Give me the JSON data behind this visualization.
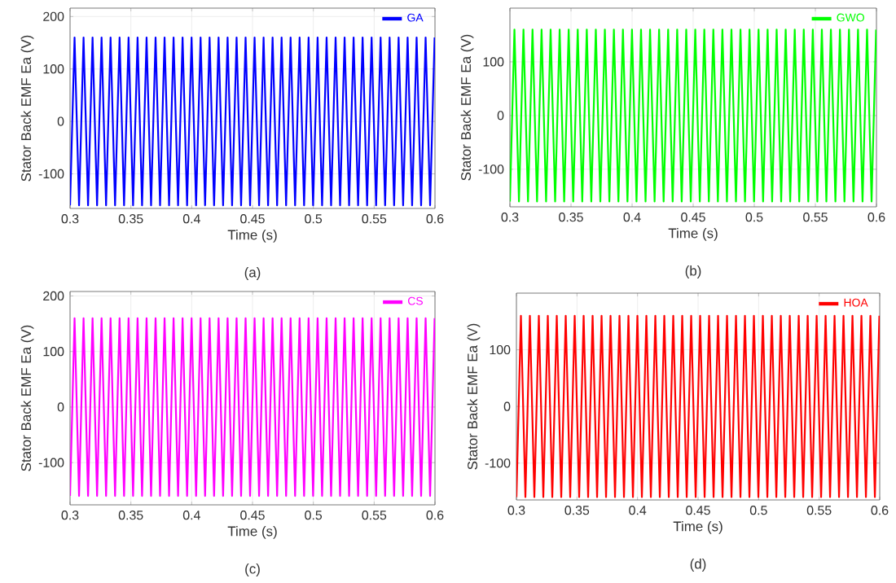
{
  "chart_data": [
    {
      "type": "line",
      "xlabel": "Time (s)",
      "ylabel": "Stator Back EMF Ea (V)",
      "annotations": [
        "(a)"
      ],
      "xlim": [
        0.3,
        0.6
      ],
      "xticks": [
        0.3,
        0.35,
        0.4,
        0.45,
        0.5,
        0.55,
        0.6
      ],
      "ylim": [
        -166,
        216
      ],
      "yticks": [
        -100,
        0,
        100,
        200
      ],
      "grid": true,
      "legend": "top right",
      "x": [
        0.3,
        0.3037,
        0.3074,
        0.3111,
        0.3148,
        0.3185,
        0.3222,
        0.3259,
        0.3296,
        0.3333,
        0.337,
        0.3407,
        0.3444,
        0.3481,
        0.3518,
        0.3555,
        0.3592,
        0.3629,
        0.3666,
        0.3703,
        0.374,
        0.3777,
        0.3814,
        0.3851,
        0.3888,
        0.3925,
        0.3962,
        0.3999,
        0.4036,
        0.4073,
        0.411,
        0.4147,
        0.4184,
        0.4221,
        0.4258,
        0.4295,
        0.4332,
        0.4369,
        0.4406,
        0.4443,
        0.448,
        0.4517,
        0.4554,
        0.4591,
        0.4628,
        0.4665,
        0.4702,
        0.4739,
        0.4776,
        0.4813,
        0.485,
        0.4887,
        0.4924,
        0.4961,
        0.4998,
        0.5035,
        0.5072,
        0.5109,
        0.5146,
        0.5183,
        0.522,
        0.5257,
        0.5294,
        0.5331,
        0.5368,
        0.5405,
        0.5442,
        0.5479,
        0.5516,
        0.5553,
        0.559,
        0.5627,
        0.5664,
        0.5701,
        0.5738,
        0.5775,
        0.5812,
        0.5849,
        0.5886,
        0.5923,
        0.596,
        0.5997
      ],
      "series": [
        {
          "name": "GA",
          "color": "#0000ff",
          "values": [
            -160,
            160,
            -160,
            160,
            -160,
            160,
            -160,
            160,
            -160,
            160,
            -160,
            160,
            -160,
            160,
            -160,
            160,
            -160,
            160,
            -160,
            160,
            -160,
            160,
            -160,
            160,
            -160,
            160,
            -160,
            160,
            -160,
            160,
            -160,
            160,
            -160,
            160,
            -160,
            160,
            -160,
            160,
            -160,
            160,
            -160,
            160,
            -160,
            160,
            -160,
            160,
            -160,
            160,
            -160,
            160,
            -160,
            160,
            -160,
            160,
            -160,
            160,
            -160,
            160,
            -160,
            160,
            -160,
            160,
            -160,
            160,
            -160,
            160,
            -160,
            160,
            -160,
            160,
            -160,
            160,
            -160,
            160,
            -160,
            160,
            -160,
            160,
            -160,
            160,
            -160,
            160
          ]
        }
      ]
    },
    {
      "type": "line",
      "xlabel": "Time (s)",
      "ylabel": "Stator Back EMF Ea (V)",
      "annotations": [
        "(b)"
      ],
      "xlim": [
        0.3,
        0.6
      ],
      "xticks": [
        0.3,
        0.35,
        0.4,
        0.45,
        0.5,
        0.55,
        0.6
      ],
      "ylim": [
        -170,
        200
      ],
      "yticks": [
        -100,
        0,
        100
      ],
      "grid": true,
      "legend": "top right",
      "x": [
        0.3,
        0.3037,
        0.3074,
        0.3111,
        0.3148,
        0.3185,
        0.3222,
        0.3259,
        0.3296,
        0.3333,
        0.337,
        0.3407,
        0.3444,
        0.3481,
        0.3518,
        0.3555,
        0.3592,
        0.3629,
        0.3666,
        0.3703,
        0.374,
        0.3777,
        0.3814,
        0.3851,
        0.3888,
        0.3925,
        0.3962,
        0.3999,
        0.4036,
        0.4073,
        0.411,
        0.4147,
        0.4184,
        0.4221,
        0.4258,
        0.4295,
        0.4332,
        0.4369,
        0.4406,
        0.4443,
        0.448,
        0.4517,
        0.4554,
        0.4591,
        0.4628,
        0.4665,
        0.4702,
        0.4739,
        0.4776,
        0.4813,
        0.485,
        0.4887,
        0.4924,
        0.4961,
        0.4998,
        0.5035,
        0.5072,
        0.5109,
        0.5146,
        0.5183,
        0.522,
        0.5257,
        0.5294,
        0.5331,
        0.5368,
        0.5405,
        0.5442,
        0.5479,
        0.5516,
        0.5553,
        0.559,
        0.5627,
        0.5664,
        0.5701,
        0.5738,
        0.5775,
        0.5812,
        0.5849,
        0.5886,
        0.5923,
        0.596,
        0.5997
      ],
      "series": [
        {
          "name": "GWO",
          "color": "#00ff00",
          "values": [
            -160,
            160,
            -160,
            160,
            -160,
            160,
            -160,
            160,
            -160,
            160,
            -160,
            160,
            -160,
            160,
            -160,
            160,
            -160,
            160,
            -160,
            160,
            -160,
            160,
            -160,
            160,
            -160,
            160,
            -160,
            160,
            -160,
            160,
            -160,
            160,
            -160,
            160,
            -160,
            160,
            -160,
            160,
            -160,
            160,
            -160,
            160,
            -160,
            160,
            -160,
            160,
            -160,
            160,
            -160,
            160,
            -160,
            160,
            -160,
            160,
            -160,
            160,
            -160,
            160,
            -160,
            160,
            -160,
            160,
            -160,
            160,
            -160,
            160,
            -160,
            160,
            -160,
            160,
            -160,
            160,
            -160,
            160,
            -160,
            160,
            -160,
            160,
            -160,
            160,
            -160,
            160
          ]
        }
      ]
    },
    {
      "type": "line",
      "xlabel": "Time (s)",
      "ylabel": "Stator Back EMF Ea (V)",
      "annotations": [
        "(c)"
      ],
      "xlim": [
        0.3,
        0.6
      ],
      "xticks": [
        0.3,
        0.35,
        0.4,
        0.45,
        0.5,
        0.55,
        0.6
      ],
      "ylim": [
        -176,
        208
      ],
      "yticks": [
        -100,
        0,
        100,
        200
      ],
      "grid": true,
      "legend": "top right",
      "x": [
        0.3,
        0.3037,
        0.3074,
        0.3111,
        0.3148,
        0.3185,
        0.3222,
        0.3259,
        0.3296,
        0.3333,
        0.337,
        0.3407,
        0.3444,
        0.3481,
        0.3518,
        0.3555,
        0.3592,
        0.3629,
        0.3666,
        0.3703,
        0.374,
        0.3777,
        0.3814,
        0.3851,
        0.3888,
        0.3925,
        0.3962,
        0.3999,
        0.4036,
        0.4073,
        0.411,
        0.4147,
        0.4184,
        0.4221,
        0.4258,
        0.4295,
        0.4332,
        0.4369,
        0.4406,
        0.4443,
        0.448,
        0.4517,
        0.4554,
        0.4591,
        0.4628,
        0.4665,
        0.4702,
        0.4739,
        0.4776,
        0.4813,
        0.485,
        0.4887,
        0.4924,
        0.4961,
        0.4998,
        0.5035,
        0.5072,
        0.5109,
        0.5146,
        0.5183,
        0.522,
        0.5257,
        0.5294,
        0.5331,
        0.5368,
        0.5405,
        0.5442,
        0.5479,
        0.5516,
        0.5553,
        0.559,
        0.5627,
        0.5664,
        0.5701,
        0.5738,
        0.5775,
        0.5812,
        0.5849,
        0.5886,
        0.5923,
        0.596,
        0.5997
      ],
      "series": [
        {
          "name": "CS",
          "color": "#ff00ff",
          "values": [
            -160,
            160,
            -160,
            160,
            -160,
            160,
            -160,
            160,
            -160,
            160,
            -160,
            160,
            -160,
            160,
            -160,
            160,
            -160,
            160,
            -160,
            160,
            -160,
            160,
            -160,
            160,
            -160,
            160,
            -160,
            160,
            -160,
            160,
            -160,
            160,
            -160,
            160,
            -160,
            160,
            -160,
            160,
            -160,
            160,
            -160,
            160,
            -160,
            160,
            -160,
            160,
            -160,
            160,
            -160,
            160,
            -160,
            160,
            -160,
            160,
            -160,
            160,
            -160,
            160,
            -160,
            160,
            -160,
            160,
            -160,
            160,
            -160,
            160,
            -160,
            160,
            -160,
            160,
            -160,
            160,
            -160,
            160,
            -160,
            160,
            -160,
            160,
            -160,
            160,
            -160,
            160
          ]
        }
      ]
    },
    {
      "type": "line",
      "xlabel": "Time (s)",
      "ylabel": "Stator Back EMF Ea (V)",
      "annotations": [
        "(d)"
      ],
      "xlim": [
        0.3,
        0.6
      ],
      "xticks": [
        0.3,
        0.35,
        0.4,
        0.45,
        0.5,
        0.55,
        0.6
      ],
      "ylim": [
        -165,
        200
      ],
      "yticks": [
        -100,
        0,
        100
      ],
      "grid": true,
      "legend": "top right",
      "x": [
        0.3,
        0.3037,
        0.3074,
        0.3111,
        0.3148,
        0.3185,
        0.3222,
        0.3259,
        0.3296,
        0.3333,
        0.337,
        0.3407,
        0.3444,
        0.3481,
        0.3518,
        0.3555,
        0.3592,
        0.3629,
        0.3666,
        0.3703,
        0.374,
        0.3777,
        0.3814,
        0.3851,
        0.3888,
        0.3925,
        0.3962,
        0.3999,
        0.4036,
        0.4073,
        0.411,
        0.4147,
        0.4184,
        0.4221,
        0.4258,
        0.4295,
        0.4332,
        0.4369,
        0.4406,
        0.4443,
        0.448,
        0.4517,
        0.4554,
        0.4591,
        0.4628,
        0.4665,
        0.4702,
        0.4739,
        0.4776,
        0.4813,
        0.485,
        0.4887,
        0.4924,
        0.4961,
        0.4998,
        0.5035,
        0.5072,
        0.5109,
        0.5146,
        0.5183,
        0.522,
        0.5257,
        0.5294,
        0.5331,
        0.5368,
        0.5405,
        0.5442,
        0.5479,
        0.5516,
        0.5553,
        0.559,
        0.5627,
        0.5664,
        0.5701,
        0.5738,
        0.5775,
        0.5812,
        0.5849,
        0.5886,
        0.5923,
        0.596,
        0.5997
      ],
      "series": [
        {
          "name": "HOA",
          "color": "#ff0000",
          "values": [
            -160,
            160,
            -160,
            160,
            -160,
            160,
            -160,
            160,
            -160,
            160,
            -160,
            160,
            -160,
            160,
            -160,
            160,
            -160,
            160,
            -160,
            160,
            -160,
            160,
            -160,
            160,
            -160,
            160,
            -160,
            160,
            -160,
            160,
            -160,
            160,
            -160,
            160,
            -160,
            160,
            -160,
            160,
            -160,
            160,
            -160,
            160,
            -160,
            160,
            -160,
            160,
            -160,
            160,
            -160,
            160,
            -160,
            160,
            -160,
            160,
            -160,
            160,
            -160,
            160,
            -160,
            160,
            -160,
            160,
            -160,
            160,
            -160,
            160,
            -160,
            160,
            -160,
            160,
            -160,
            160,
            -160,
            160,
            -160,
            160,
            -160,
            160,
            -160,
            160,
            -160,
            160
          ]
        }
      ]
    }
  ]
}
